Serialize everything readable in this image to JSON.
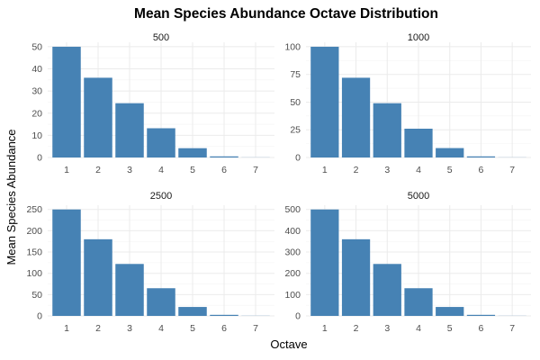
{
  "chart_data": {
    "type": "bar",
    "title": "Mean Species Abundance Octave Distribution",
    "xlabel": "Octave",
    "ylabel": "Mean Species Abundance",
    "grid": true,
    "bar_color": "#4682B4",
    "categories": [
      1,
      2,
      3,
      4,
      5,
      6,
      7
    ],
    "facets": [
      {
        "name": "500",
        "values": [
          50,
          36,
          24.5,
          13.2,
          4.2,
          0.5,
          0.05
        ],
        "ylim": [
          0,
          52
        ],
        "yticks": [
          0,
          10,
          20,
          30,
          40,
          50
        ]
      },
      {
        "name": "1000",
        "values": [
          100,
          72,
          49,
          26,
          8.5,
          1,
          0.1
        ],
        "ylim": [
          0,
          104
        ],
        "yticks": [
          0,
          25,
          50,
          75,
          100
        ]
      },
      {
        "name": "2500",
        "values": [
          250,
          180,
          122,
          65,
          21,
          2.5,
          0.3
        ],
        "ylim": [
          0,
          260
        ],
        "yticks": [
          0,
          50,
          100,
          150,
          200,
          250
        ]
      },
      {
        "name": "5000",
        "values": [
          500,
          360,
          244,
          130,
          42,
          5,
          0.5
        ],
        "ylim": [
          0,
          520
        ],
        "yticks": [
          0,
          100,
          200,
          300,
          400,
          500
        ]
      }
    ]
  }
}
